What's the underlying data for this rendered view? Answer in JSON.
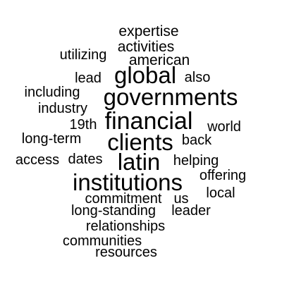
{
  "word_cloud": {
    "text_color": "#000000",
    "background_color": "#ffffff",
    "words": [
      {
        "text": "expertise"
      },
      {
        "text": "activities"
      },
      {
        "text": "utilizing"
      },
      {
        "text": "american"
      },
      {
        "text": "global"
      },
      {
        "text": "lead"
      },
      {
        "text": "also"
      },
      {
        "text": "including"
      },
      {
        "text": "governments"
      },
      {
        "text": "industry"
      },
      {
        "text": "financial"
      },
      {
        "text": "19th"
      },
      {
        "text": "world"
      },
      {
        "text": "long-term"
      },
      {
        "text": "clients"
      },
      {
        "text": "back"
      },
      {
        "text": "access"
      },
      {
        "text": "dates"
      },
      {
        "text": "latin"
      },
      {
        "text": "helping"
      },
      {
        "text": "offering"
      },
      {
        "text": "institutions"
      },
      {
        "text": "local"
      },
      {
        "text": "commitment"
      },
      {
        "text": "us"
      },
      {
        "text": "long-standing"
      },
      {
        "text": "leader"
      },
      {
        "text": "relationships"
      },
      {
        "text": "communities"
      },
      {
        "text": "resources"
      }
    ]
  }
}
